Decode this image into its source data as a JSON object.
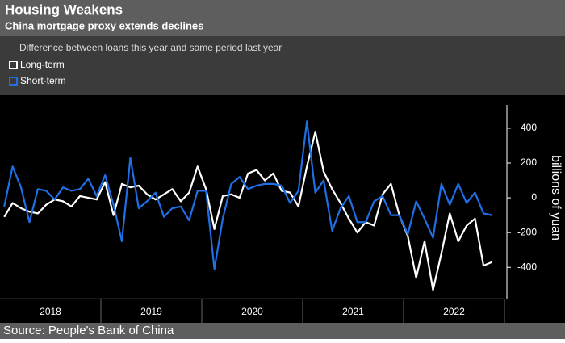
{
  "chart_data": {
    "type": "line",
    "title": "Housing Weakens",
    "subtitle": "China mortgage proxy extends declines",
    "description": "Difference between loans this year and same period last year",
    "source": "Source: People's Bank of China",
    "ylabel": "billions of yuan",
    "x": [
      2018.042,
      2018.125,
      2018.208,
      2018.292,
      2018.375,
      2018.458,
      2018.542,
      2018.625,
      2018.708,
      2018.792,
      2018.875,
      2018.958,
      2019.042,
      2019.125,
      2019.208,
      2019.292,
      2019.375,
      2019.458,
      2019.542,
      2019.625,
      2019.708,
      2019.792,
      2019.875,
      2019.958,
      2020.042,
      2020.125,
      2020.208,
      2020.292,
      2020.375,
      2020.458,
      2020.542,
      2020.625,
      2020.708,
      2020.792,
      2020.875,
      2020.958,
      2021.042,
      2021.125,
      2021.208,
      2021.292,
      2021.375,
      2021.458,
      2021.542,
      2021.625,
      2021.708,
      2021.792,
      2021.875,
      2021.958,
      2022.042,
      2022.125,
      2022.208,
      2022.292,
      2022.375,
      2022.458,
      2022.542,
      2022.625,
      2022.708,
      2022.792,
      2022.875
    ],
    "series": [
      {
        "name": "Long-term",
        "color": "#ffffff",
        "values": [
          -110,
          -30,
          -60,
          -80,
          -90,
          -40,
          -10,
          -20,
          -50,
          10,
          0,
          -10,
          90,
          -100,
          80,
          60,
          70,
          20,
          -10,
          20,
          50,
          -20,
          30,
          180,
          50,
          -180,
          10,
          20,
          0,
          140,
          160,
          100,
          140,
          40,
          30,
          -50,
          180,
          380,
          150,
          50,
          -30,
          -120,
          -200,
          -140,
          -160,
          20,
          80,
          -100,
          -220,
          -460,
          -250,
          -530,
          -320,
          -90,
          -250,
          -160,
          -120,
          -390,
          -370
        ]
      },
      {
        "name": "Short-term",
        "color": "#1f6fe5",
        "values": [
          -50,
          180,
          60,
          -140,
          50,
          40,
          -10,
          60,
          40,
          50,
          110,
          10,
          130,
          -40,
          -250,
          230,
          -60,
          -20,
          30,
          -110,
          -60,
          -50,
          -130,
          40,
          40,
          -410,
          -120,
          80,
          120,
          50,
          70,
          80,
          80,
          70,
          -30,
          40,
          440,
          30,
          100,
          -190,
          -60,
          10,
          -140,
          -140,
          -20,
          10,
          -100,
          -100,
          -210,
          -20,
          -120,
          -230,
          80,
          -40,
          80,
          -30,
          30,
          -90,
          -100
        ]
      }
    ],
    "xlim": [
      2018,
      2023
    ],
    "xticks": [
      {
        "value": 2018.5,
        "label": "2018"
      },
      {
        "value": 2019.5,
        "label": "2019"
      },
      {
        "value": 2020.5,
        "label": "2020"
      },
      {
        "value": 2021.5,
        "label": "2021"
      },
      {
        "value": 2022.5,
        "label": "2022"
      }
    ],
    "ylim": [
      -580,
      590
    ],
    "yticks": [
      400,
      200,
      0,
      -200,
      -400
    ]
  }
}
